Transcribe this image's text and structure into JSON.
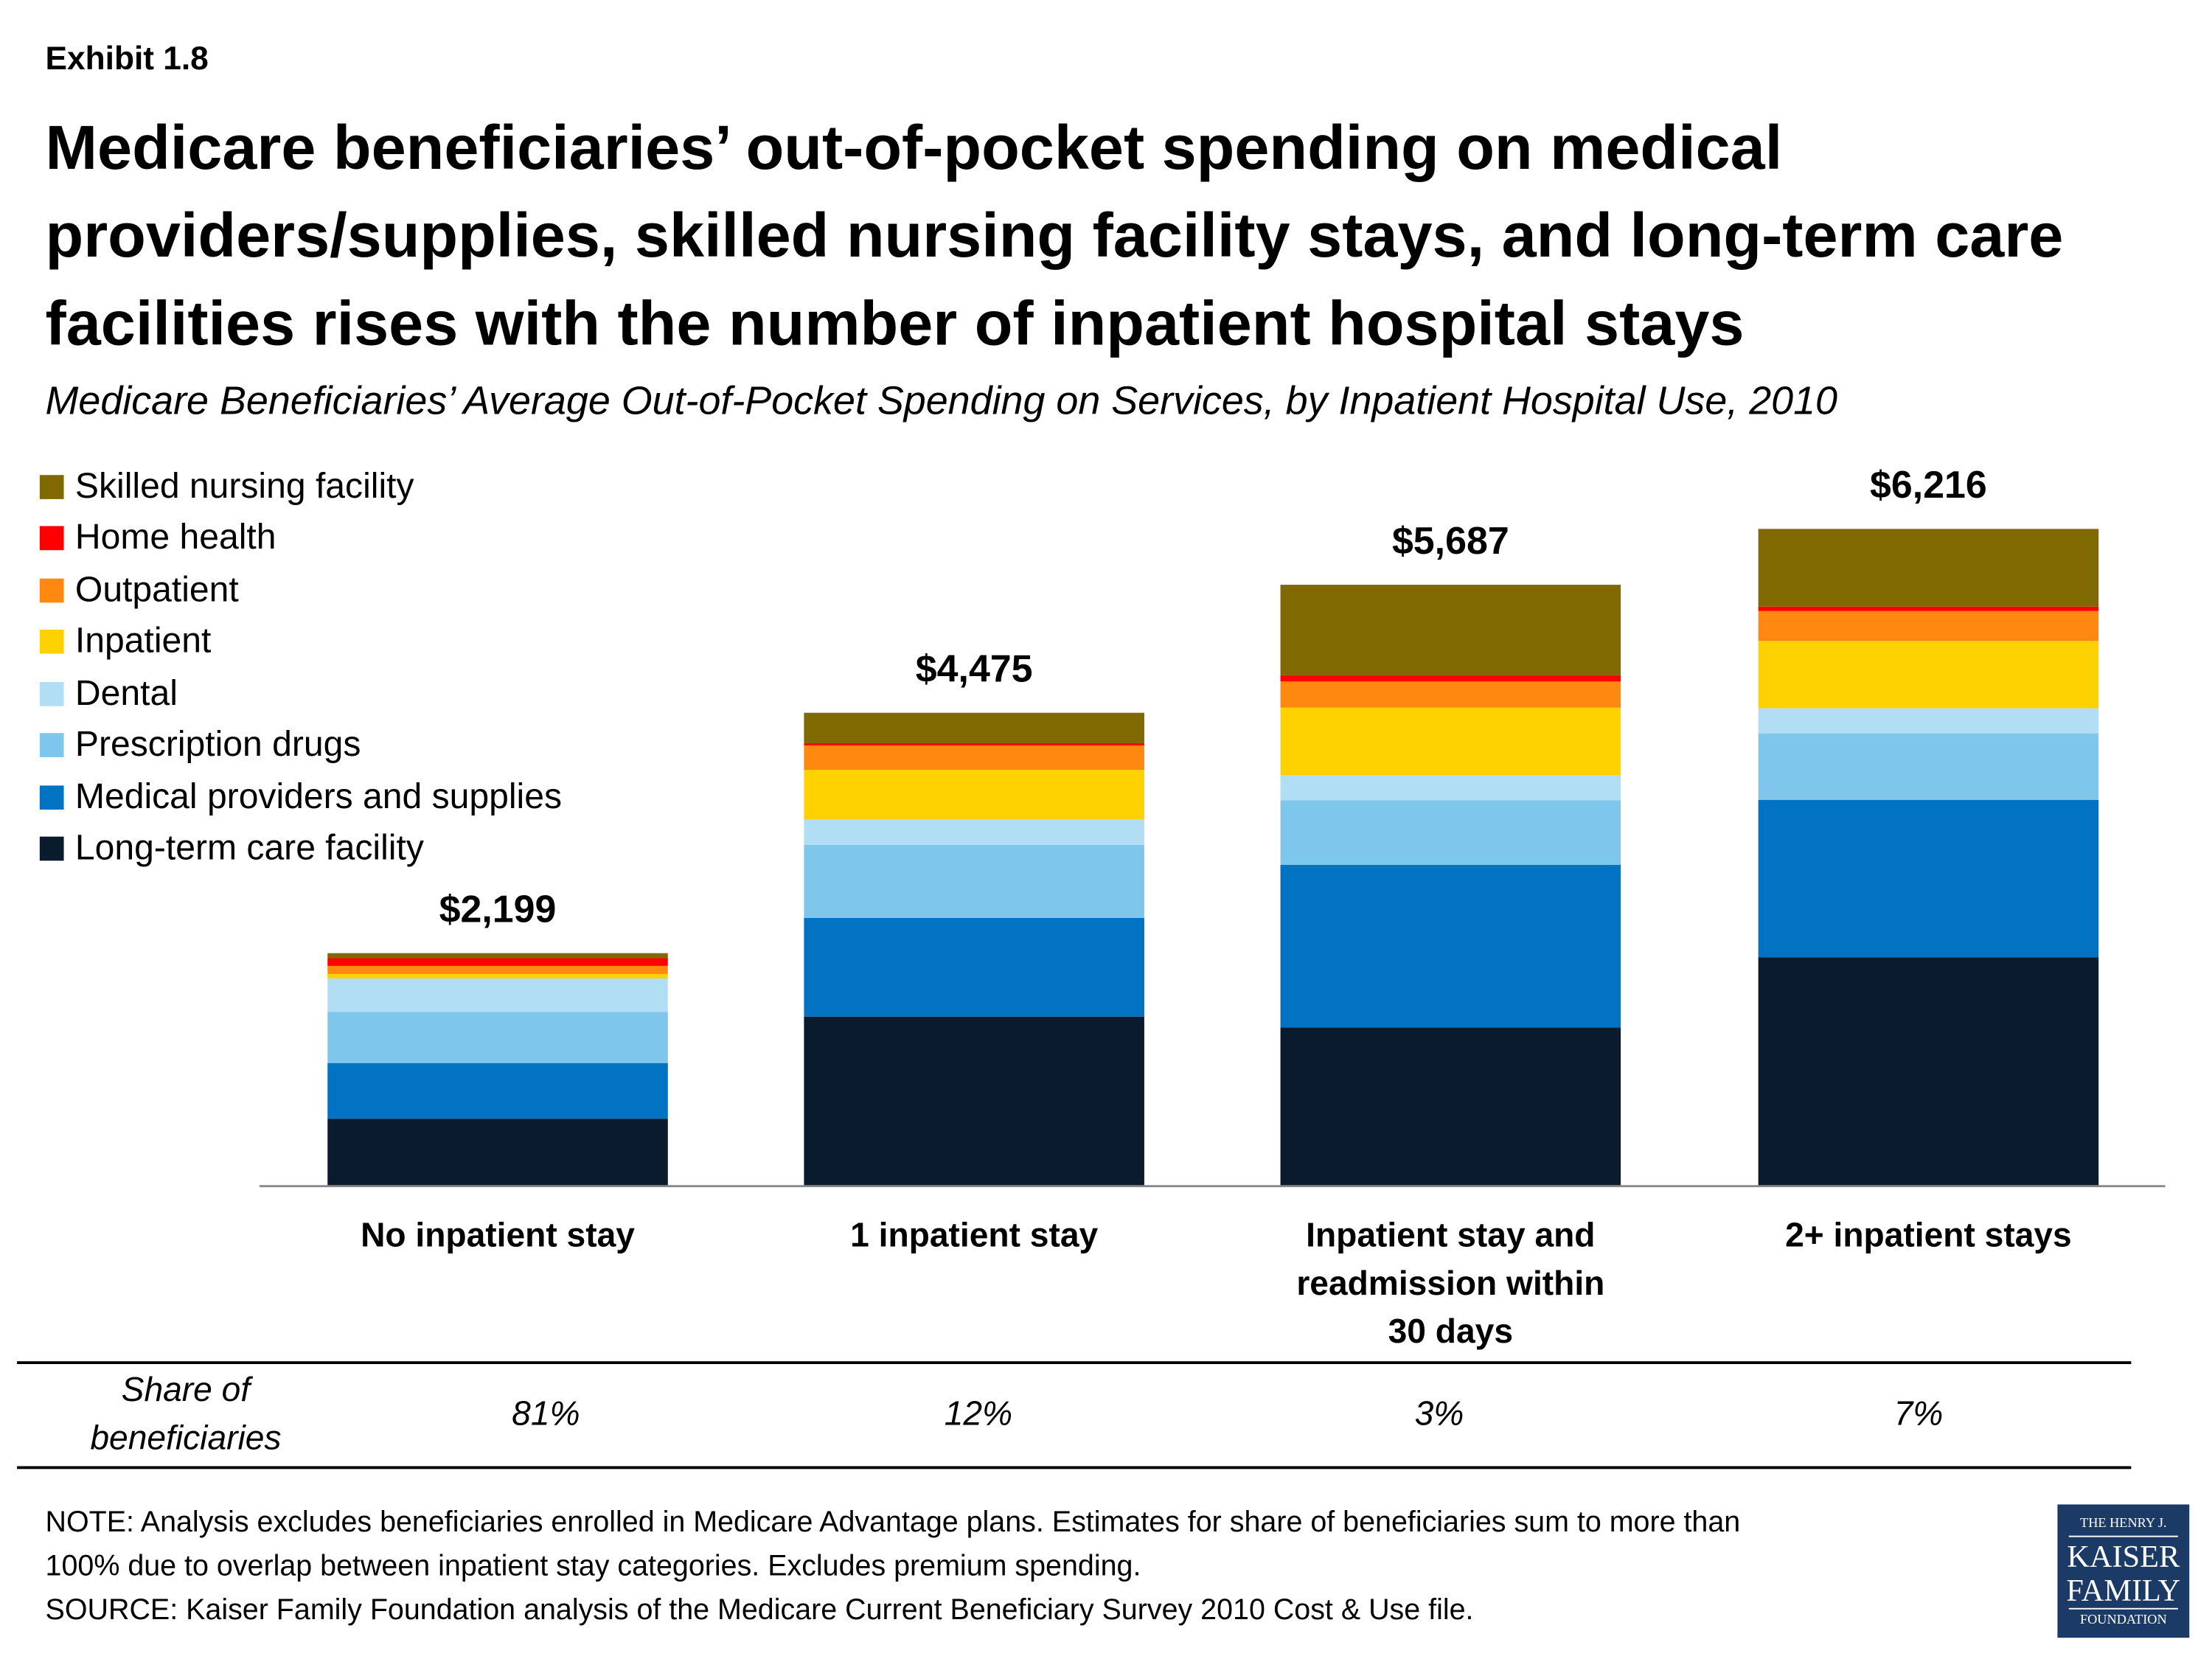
{
  "exhibit": "Exhibit 1.8",
  "title_lines": [
    "Medicare beneficiaries’ out-of-pocket spending on medical",
    "providers/supplies, skilled nursing facility stays, and long-term care",
    "facilities rises with the number of inpatient hospital stays"
  ],
  "subtitle": "Medicare Beneficiaries’ Average Out-of-Pocket Spending on Services, by Inpatient Hospital Use, 2010",
  "chart_data": {
    "type": "bar",
    "stacked": true,
    "title": "Medicare Beneficiaries’ Average Out-of-Pocket Spending on Services, by Inpatient Hospital Use, 2010",
    "categories": [
      "No inpatient stay",
      "1 inpatient stay",
      "Inpatient stay and readmission within 30 days",
      "2+ inpatient stays"
    ],
    "category_label_lines": [
      [
        "No inpatient stay"
      ],
      [
        "1 inpatient stay"
      ],
      [
        "Inpatient stay and",
        "readmission within",
        "30 days"
      ],
      [
        "2+ inpatient stays"
      ]
    ],
    "totals": [
      2199,
      4475,
      5687,
      6216
    ],
    "total_labels": [
      "$2,199",
      "$4,475",
      "$5,687",
      "$6,216"
    ],
    "series": [
      {
        "name": "Long-term care facility",
        "color": "#0b1b2e",
        "values": [
          632,
          1598,
          1495,
          2159
        ]
      },
      {
        "name": "Medical providers and supplies",
        "color": "#0272c2",
        "values": [
          527,
          935,
          1540,
          1492
        ]
      },
      {
        "name": "Prescription drugs",
        "color": "#7fc6ed",
        "values": [
          485,
          692,
          612,
          629
        ]
      },
      {
        "name": "Dental",
        "color": "#b1def4",
        "values": [
          316,
          240,
          237,
          238
        ]
      },
      {
        "name": "Inpatient",
        "color": "#fed100",
        "values": [
          42,
          470,
          639,
          637
        ]
      },
      {
        "name": "Outpatient",
        "color": "#ff8811",
        "values": [
          77,
          231,
          248,
          284
        ]
      },
      {
        "name": "Home health",
        "color": "#ff0000",
        "values": [
          73,
          21,
          60,
          41
        ]
      },
      {
        "name": "Skilled nursing facility",
        "color": "#7f6900",
        "values": [
          47,
          288,
          856,
          736
        ]
      }
    ],
    "legend_order": [
      "Skilled nursing facility",
      "Home health",
      "Outpatient",
      "Inpatient",
      "Dental",
      "Prescription drugs",
      "Medical providers and supplies",
      "Long-term care facility"
    ],
    "legend_position": "top-left",
    "ylim": [
      0,
      6216
    ],
    "y_axis_shown": false,
    "grid": false,
    "xlabel": "",
    "ylabel": ""
  },
  "share": {
    "label_lines": [
      "Share of",
      "beneficiaries"
    ],
    "values": [
      "81%",
      "12%",
      "3%",
      "7%"
    ]
  },
  "notes": [
    "NOTE: Analysis excludes beneficiaries enrolled in Medicare Advantage plans. Estimates for share of beneficiaries sum to more than",
    "100% due to overlap between inpatient stay categories. Excludes premium spending.",
    "SOURCE: Kaiser Family Foundation analysis of the Medicare Current Beneficiary Survey 2010 Cost & Use file."
  ],
  "logo": {
    "lines": [
      "THE HENRY J.",
      "KAISER",
      "FAMILY",
      "FOUNDATION"
    ],
    "color": "#1b3a66"
  }
}
